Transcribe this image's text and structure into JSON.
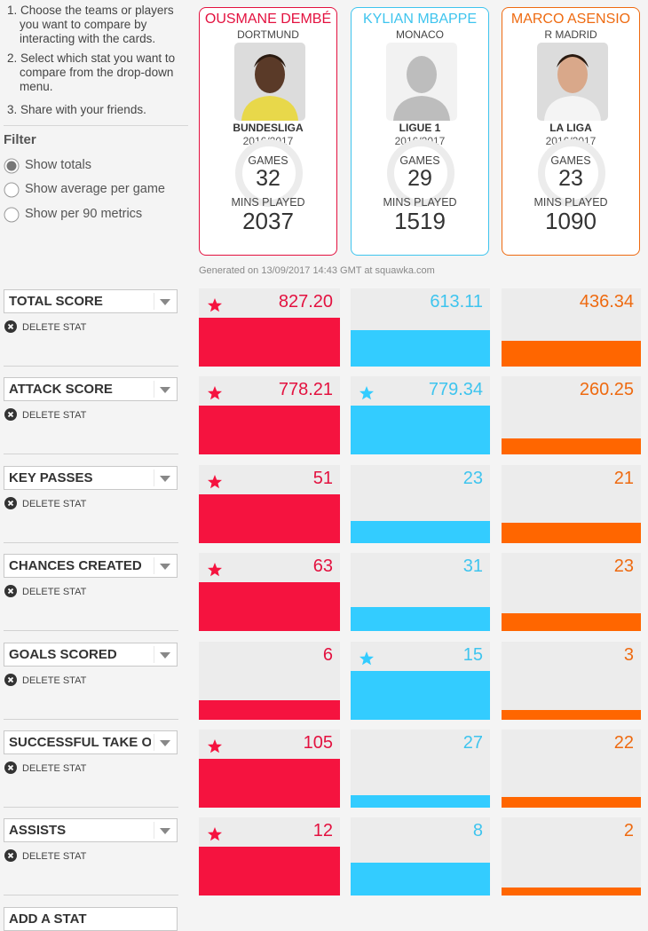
{
  "instructions": [
    "1. Choose the teams or players you want to compare by interacting with the cards.",
    "2. Select which stat you want to compare from the drop-down menu.",
    "3. Share with your friends."
  ],
  "filter": {
    "title": "Filter",
    "options": [
      "Show totals",
      "Show average per game",
      "Show per 90 metrics"
    ],
    "selected": 0
  },
  "games_label": "GAMES",
  "mins_label": "MINS PLAYED",
  "players": [
    {
      "name": "OUSMANE DEMBÉ",
      "club": "DORTMUND",
      "league": "BUNDESLIGA",
      "season": "2016/2017",
      "games": 32,
      "mins": 2037,
      "color": "#e3113f",
      "bar_color": "#f5133f",
      "photo": "person"
    },
    {
      "name": "KYLIAN MBAPPE",
      "club": "MONACO",
      "league": "LIGUE 1",
      "season": "2016/2017",
      "games": 29,
      "mins": 1519,
      "color": "#3ec4ee",
      "bar_color": "#33ccff",
      "photo": "placeholder"
    },
    {
      "name": "MARCO ASENSIO",
      "club": "R MADRID",
      "league": "LA LIGA",
      "season": "2016/2017",
      "games": 23,
      "mins": 1090,
      "color": "#ee6a10",
      "bar_color": "#ff6600",
      "photo": "person"
    }
  ],
  "generated": "Generated on 13/09/2017 14:43 GMT at squawka.com",
  "delete_label": "DELETE STAT",
  "stats": [
    {
      "name": "TOTAL SCORE",
      "values": [
        827.2,
        613.11,
        436.34
      ],
      "value_labels": [
        "827.20",
        "613.11",
        "436.34"
      ],
      "starred": [
        true,
        false,
        false
      ]
    },
    {
      "name": "ATTACK SCORE",
      "values": [
        778.21,
        779.34,
        260.25
      ],
      "starred": [
        true,
        true,
        false
      ]
    },
    {
      "name": "KEY PASSES",
      "values": [
        51,
        23,
        21
      ],
      "starred": [
        true,
        false,
        false
      ]
    },
    {
      "name": "CHANCES CREATED",
      "values": [
        63,
        31,
        23
      ],
      "starred": [
        true,
        false,
        false
      ]
    },
    {
      "name": "GOALS SCORED",
      "values": [
        6,
        15,
        3
      ],
      "starred": [
        false,
        true,
        false
      ]
    },
    {
      "name": "SUCCESSFUL TAKE O",
      "values": [
        105,
        27,
        22
      ],
      "starred": [
        true,
        false,
        false
      ]
    },
    {
      "name": "ASSISTS",
      "values": [
        12,
        8,
        2
      ],
      "starred": [
        true,
        false,
        false
      ]
    }
  ],
  "add_stat": "ADD A STAT"
}
